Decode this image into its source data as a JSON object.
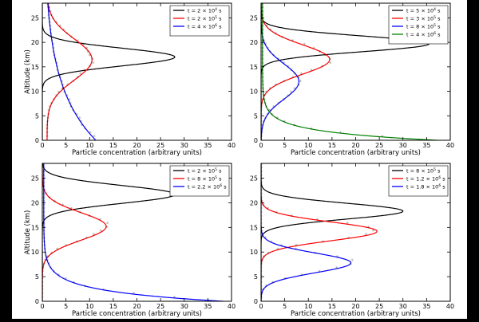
{
  "colors": {
    "background": "#ffffff",
    "frame": "#000000"
  },
  "chart_data": [
    {
      "type": "line",
      "panel": "top-left",
      "xlabel": "Particle concentration (arbitrary units)",
      "ylabel": "Altitude (km)",
      "xlim": [
        0,
        40
      ],
      "ylim": [
        0,
        28
      ],
      "xticks": [
        0,
        5,
        10,
        15,
        20,
        25,
        30,
        35,
        40
      ],
      "yticks": [
        0,
        5,
        10,
        15,
        20,
        25
      ],
      "legend_position": "top-right",
      "series": [
        {
          "name": "t = 2 × 10⁴ s",
          "legend": [
            "t = 2 × 10",
            "4",
            " s"
          ],
          "color": "#000000",
          "kind": "gauss",
          "amp": 28,
          "center": 17,
          "sigma": 1.8,
          "base": 0,
          "markers": false
        },
        {
          "name": "t = 2 × 10⁵ s",
          "legend": [
            "t = 2 × 10",
            "5",
            " s"
          ],
          "color": "#ff0000",
          "kind": "gauss",
          "amp": 9.5,
          "center": 16.5,
          "sigma": 4.2,
          "base": 1.0,
          "markers": true
        },
        {
          "name": "t = 4 × 10⁶ s",
          "legend": [
            "t = 4 × 10",
            "6",
            " s"
          ],
          "color": "#0000ff",
          "kind": "exp",
          "amp": 11.0,
          "scale": 11.0,
          "base": 0.3,
          "markers": true
        }
      ]
    },
    {
      "type": "line",
      "panel": "top-right",
      "xlabel": "Particle concentration (arbitrary units)",
      "ylabel": "",
      "xlim": [
        0,
        40
      ],
      "ylim": [
        0,
        28
      ],
      "xticks": [
        0,
        5,
        10,
        15,
        20,
        25,
        30,
        35,
        40
      ],
      "yticks": [
        0,
        5,
        10,
        15,
        20,
        25
      ],
      "legend_position": "top-right",
      "series": [
        {
          "name": "t = 5 × 10⁴ s",
          "legend": [
            "t = 5 × 10",
            "4",
            " s"
          ],
          "color": "#000000",
          "kind": "gauss",
          "amp": 35.5,
          "center": 19.7,
          "sigma": 1.6,
          "base": 0,
          "markers": false
        },
        {
          "name": "t = 3 × 10⁵ s",
          "legend": [
            "t = 3 × 10",
            "5",
            " s"
          ],
          "color": "#ff0000",
          "kind": "gauss",
          "amp": 14.5,
          "center": 16.5,
          "sigma": 3.0,
          "base": 0,
          "markers": true
        },
        {
          "name": "t = 8 × 10⁵ s",
          "legend": [
            "t = 8 × 10",
            "5",
            " s"
          ],
          "color": "#0000ff",
          "kind": "gauss",
          "amp": 8.0,
          "center": 12.0,
          "sigma": 3.6,
          "base": 0,
          "markers": true
        },
        {
          "name": "t = 4 × 10⁶ s",
          "legend": [
            "t = 4 × 10",
            "6",
            " s"
          ],
          "color": "#008000",
          "kind": "exp",
          "amp": 37.0,
          "scale": 1.8,
          "base": 0.3,
          "markers": true
        }
      ]
    },
    {
      "type": "line",
      "panel": "bottom-left",
      "xlabel": "Particle concentration (arbitrary units)",
      "ylabel": "Altitude (km)",
      "xlim": [
        0,
        40
      ],
      "ylim": [
        0,
        28
      ],
      "xticks": [
        0,
        5,
        10,
        15,
        20,
        25,
        30,
        35,
        40
      ],
      "yticks": [
        0,
        5,
        10,
        15,
        20,
        25
      ],
      "legend_position": "top-right",
      "series": [
        {
          "name": "t = 2 × 10⁵ s",
          "legend": [
            "t = 2 × 10",
            "5",
            " s"
          ],
          "color": "#000000",
          "kind": "gauss",
          "amp": 28,
          "center": 21.7,
          "sigma": 1.8,
          "base": 0,
          "markers": false
        },
        {
          "name": "t = 8 × 10⁵ s",
          "legend": [
            "t = 8 × 10",
            "5",
            " s"
          ],
          "color": "#ff0000",
          "kind": "gauss",
          "amp": 13.5,
          "center": 15.2,
          "sigma": 2.8,
          "base": 0,
          "markers": true
        },
        {
          "name": "t = 2.2 × 10⁶ s",
          "legend": [
            "t = 2.2 × 10",
            "6",
            " s"
          ],
          "color": "#0000ff",
          "kind": "exp",
          "amp": 38.0,
          "scale": 2.1,
          "base": 0.3,
          "markers": true
        }
      ]
    },
    {
      "type": "line",
      "panel": "bottom-right",
      "xlabel": "Particle concentration (arbitrary units)",
      "ylabel": "",
      "xlim": [
        0,
        40
      ],
      "ylim": [
        0,
        28
      ],
      "xticks": [
        0,
        5,
        10,
        15,
        20,
        25,
        30,
        35,
        40
      ],
      "yticks": [
        0,
        5,
        10,
        15,
        20,
        25
      ],
      "legend_position": "top-right",
      "series": [
        {
          "name": "t = 8 × 10⁵ s",
          "legend": [
            "t = 8 × 10",
            "5",
            " s"
          ],
          "color": "#000000",
          "kind": "gauss",
          "amp": 30,
          "center": 18.3,
          "sigma": 1.6,
          "base": 0,
          "markers": false
        },
        {
          "name": "t = 1.2 × 10⁶ s",
          "legend": [
            "t = 1.2 × 10",
            "6",
            " s"
          ],
          "color": "#ff0000",
          "kind": "gauss",
          "amp": 24.5,
          "center": 14.2,
          "sigma": 1.9,
          "base": 0,
          "markers": true
        },
        {
          "name": "t = 1.8 × 10⁶ s",
          "legend": [
            "t = 1.8 × 10",
            "6",
            " s"
          ],
          "color": "#0000ff",
          "kind": "gauss",
          "amp": 19.0,
          "center": 7.8,
          "sigma": 2.0,
          "base": 0,
          "markers": true
        }
      ]
    }
  ]
}
